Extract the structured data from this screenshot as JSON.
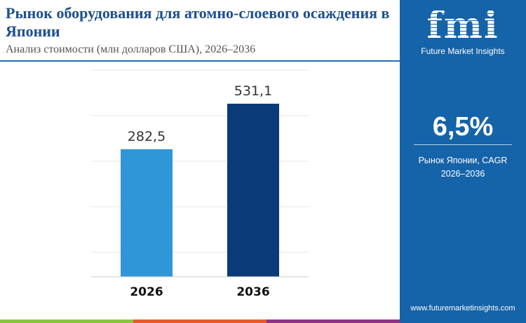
{
  "header": {
    "title": "Рынок оборудования для атомно-слоевого осаждения в Японии",
    "subtitle": "Анализ стоимости (млн долларов США), 2026–2036"
  },
  "panel": {
    "logo_text": "fmi",
    "brand": "Future Market Insights",
    "cagr_value": "6,5%",
    "cagr_label_line1": "Рынок Японии, CAGR",
    "cagr_label_line2": "2026–2036",
    "url": "www.futuremarketinsights.com"
  },
  "colors": {
    "bar_2026": "#2f97d8",
    "bar_2036": "#0b3a78",
    "panel": "#1563a8",
    "stripes": [
      "#8cc63f",
      "#e9592a",
      "#8e3386"
    ]
  },
  "chart_data": {
    "type": "bar",
    "categories": [
      "2026",
      "2036"
    ],
    "values": [
      282.5,
      531.1
    ],
    "labels": [
      "282,5",
      "531,1"
    ],
    "grid": true
  }
}
